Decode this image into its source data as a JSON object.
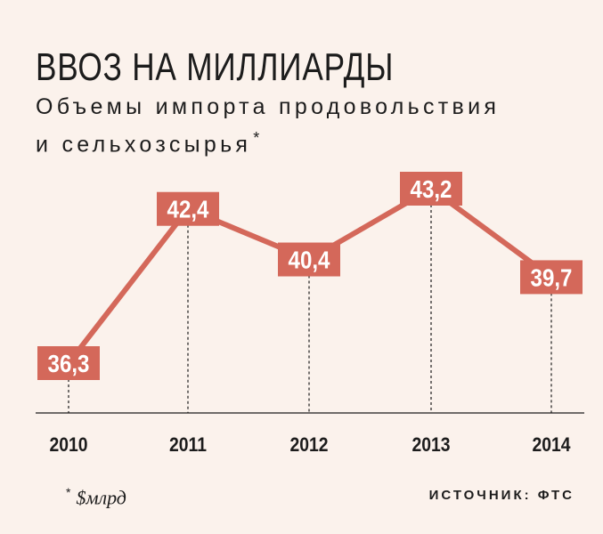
{
  "header": {
    "title": "ВВОЗ НА МИЛЛИАРДЫ",
    "subtitle_line1": "Объемы импорта продовольствия",
    "subtitle_line2": "и сельхозсырья",
    "subtitle_mark": "*"
  },
  "footer": {
    "footnote_mark": "*",
    "footnote_unit": "$млрд",
    "source": "ИСТОЧНИК: ФТС"
  },
  "colors": {
    "background": "#fbf2ec",
    "line": "#d4685a",
    "label_box": "#d4685a",
    "label_text": "#ffffff",
    "axis": "#1c1c1c"
  },
  "chart_data": {
    "type": "line",
    "categories": [
      "2010",
      "2011",
      "2012",
      "2013",
      "2014"
    ],
    "values": [
      36.3,
      42.4,
      40.4,
      43.2,
      39.7
    ],
    "value_labels": [
      "36,3",
      "42,4",
      "40,4",
      "43,2",
      "39,7"
    ],
    "title": "ВВОЗ НА МИЛЛИАРДЫ",
    "xlabel": "",
    "ylabel": "",
    "unit": "$млрд",
    "grid": false,
    "legend": "none"
  }
}
